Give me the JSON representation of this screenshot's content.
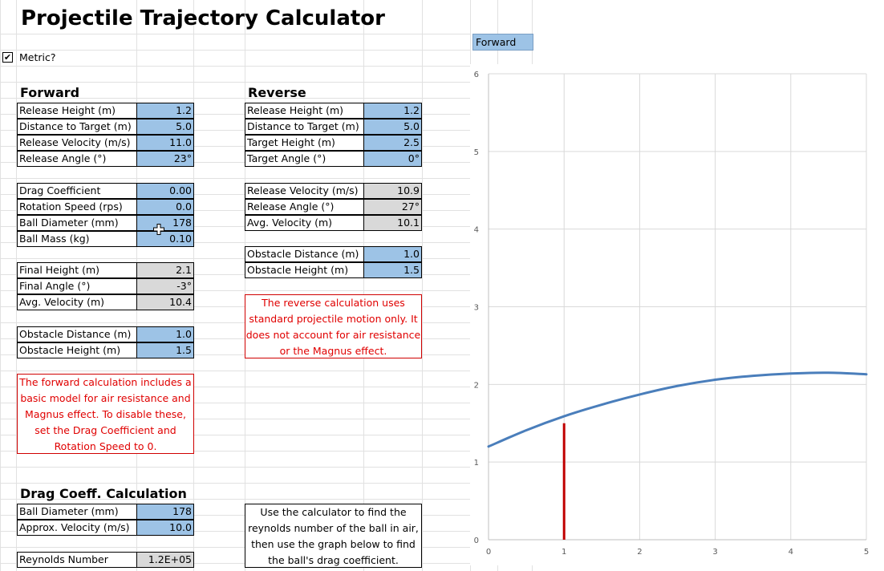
{
  "title": "Projectile Trajectory Calculator",
  "metric": {
    "label": "Metric?",
    "checked": true,
    "mark": "✔"
  },
  "forward": {
    "heading": "Forward",
    "rows": [
      {
        "label": "Release Height (m)",
        "value": "1.2"
      },
      {
        "label": "Distance to Target (m)",
        "value": "5.0"
      },
      {
        "label": "Release Velocity (m/s)",
        "value": "11.0"
      },
      {
        "label": "Release Angle (°)",
        "value": "23°"
      }
    ],
    "params": [
      {
        "label": "Drag Coefficient",
        "value": "0.00"
      },
      {
        "label": "Rotation Speed (rps)",
        "value": "0.0"
      },
      {
        "label": "Ball Diameter (mm)",
        "value": "178"
      },
      {
        "label": "Ball Mass (kg)",
        "value": "0.10"
      }
    ],
    "results": [
      {
        "label": "Final Height (m)",
        "value": "2.1"
      },
      {
        "label": "Final Angle (°)",
        "value": "-3°"
      },
      {
        "label": "Avg. Velocity (m)",
        "value": "10.4"
      }
    ],
    "obstacle": [
      {
        "label": "Obstacle Distance (m)",
        "value": "1.0"
      },
      {
        "label": "Obstacle Height (m)",
        "value": "1.5"
      }
    ],
    "note_lines": [
      "The forward calculation includes a",
      "basic model for air resistance and",
      "Magnus effect. To disable these,",
      "set the Drag Coefficient and",
      "Rotation Speed to 0."
    ]
  },
  "reverse": {
    "heading": "Reverse",
    "rows": [
      {
        "label": "Release Height (m)",
        "value": "1.2"
      },
      {
        "label": "Distance to Target (m)",
        "value": "5.0"
      },
      {
        "label": "Target Height (m)",
        "value": "2.5"
      },
      {
        "label": "Target Angle (°)",
        "value": "0°"
      }
    ],
    "results": [
      {
        "label": "Release Velocity (m/s)",
        "value": "10.9"
      },
      {
        "label": "Release Angle (°)",
        "value": "27°"
      },
      {
        "label": "Avg. Velocity (m)",
        "value": "10.1"
      }
    ],
    "obstacle": [
      {
        "label": "Obstacle Distance (m)",
        "value": "1.0"
      },
      {
        "label": "Obstacle Height (m)",
        "value": "1.5"
      }
    ],
    "note_lines": [
      "The reverse calculation uses",
      "standard projectile motion only. It",
      "does not account for air resistance",
      "or the Magnus effect."
    ]
  },
  "drag": {
    "heading": "Drag Coeff. Calculation",
    "rows": [
      {
        "label": "Ball Diameter (mm)",
        "value": "178"
      },
      {
        "label": "Approx. Velocity (m/s)",
        "value": "10.0"
      }
    ],
    "reynolds": {
      "label": "Reynolds Number",
      "value": "1.2E+05"
    },
    "note_lines": [
      "Use the calculator to find the",
      "reynolds number of the ball in air,",
      "then use the graph below to find",
      "the ball's drag coefficient."
    ]
  },
  "chart_title": "Forward",
  "colors": {
    "input": "#9dc3e6",
    "output": "#d9d9d9",
    "note_red": "#e00000",
    "trajectory": "#4a7ebb",
    "obstacle": "#c00000"
  },
  "chart_data": {
    "type": "line",
    "title": "Forward",
    "xlim": [
      0,
      5
    ],
    "ylim": [
      0,
      6
    ],
    "x_ticks": [
      "0",
      "1",
      "2",
      "3",
      "4",
      "5"
    ],
    "y_ticks": [
      "0",
      "1",
      "2",
      "3",
      "4",
      "5",
      "6"
    ],
    "grid": true,
    "series": [
      {
        "x": [
          0,
          0.5,
          1,
          1.5,
          2,
          2.5,
          3,
          3.5,
          4,
          4.5,
          5
        ],
        "y": [
          1.2,
          1.41,
          1.59,
          1.74,
          1.87,
          1.98,
          2.06,
          2.11,
          2.14,
          2.15,
          2.13
        ]
      },
      {
        "x": [
          1,
          1
        ],
        "y": [
          0,
          1.5
        ]
      }
    ]
  }
}
